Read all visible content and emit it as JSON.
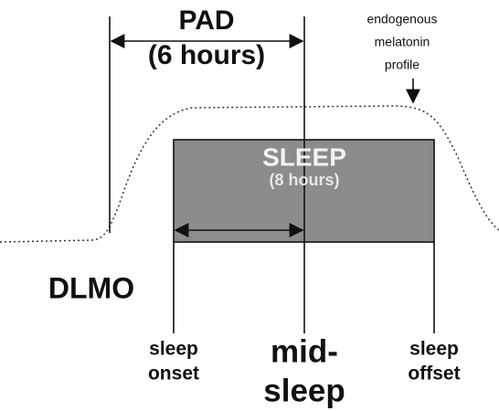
{
  "pad": {
    "label": "PAD",
    "duration": "(6 hours)"
  },
  "melatonin_label": [
    "endogenous",
    "melatonin",
    "profile"
  ],
  "sleep": {
    "label": "SLEEP",
    "duration": "(8 hours)"
  },
  "dlmo": "DLMO",
  "sleep_onset": [
    "sleep",
    "onset"
  ],
  "mid_sleep": [
    "mid-",
    "sleep"
  ],
  "sleep_offset": [
    "sleep",
    "offset"
  ]
}
